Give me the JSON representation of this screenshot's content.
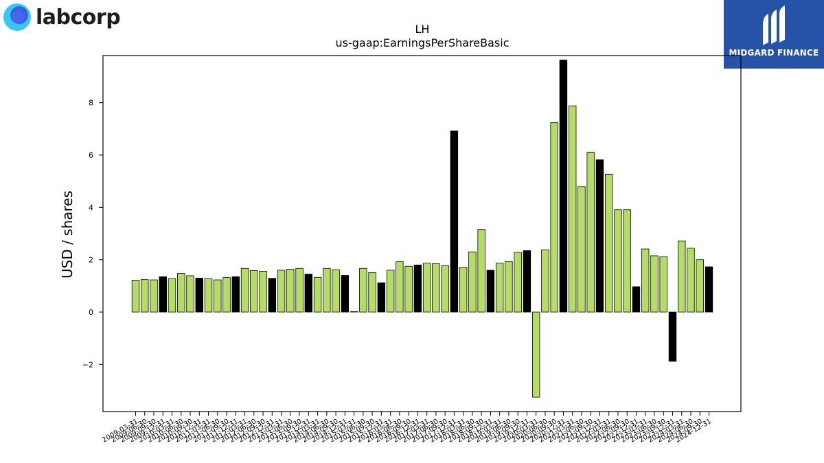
{
  "brand": {
    "name": "labcorp",
    "logo_icon": "labcorp-circle-logo"
  },
  "badge": {
    "name": "MIDGARD FINANCE",
    "icon": "midgard-logo"
  },
  "colors": {
    "bar_normal": "#b5dc67",
    "bar_q4": "#000000",
    "axis": "#000000"
  },
  "chart_data": {
    "type": "bar",
    "title": "LH",
    "subtitle": "us-gaap:EarningsPerShareBasic",
    "ylabel": "USD / shares",
    "xlabel": "",
    "ylim": [
      -3.8,
      9.8
    ],
    "yticks": [
      -2,
      0,
      2,
      4,
      6,
      8
    ],
    "ytick_labels": [
      "−2",
      "0",
      "2",
      "4",
      "6",
      "8"
    ],
    "grid": false,
    "categories": [
      "2009-03-31",
      "2009-06-30",
      "2009-09-30",
      "2009-12-31",
      "2010-03-31",
      "2010-06-30",
      "2010-09-30",
      "2010-12-31",
      "2011-03-31",
      "2011-06-30",
      "2011-09-30",
      "2011-12-31",
      "2012-03-31",
      "2012-06-30",
      "2012-09-30",
      "2012-12-31",
      "2013-03-31",
      "2013-06-30",
      "2013-09-30",
      "2013-12-31",
      "2014-03-31",
      "2014-06-30",
      "2014-09-30",
      "2014-12-31",
      "2015-03-31",
      "2015-06-30",
      "2015-09-30",
      "2015-12-31",
      "2016-03-31",
      "2016-06-30",
      "2016-09-30",
      "2016-12-31",
      "2017-03-31",
      "2017-06-30",
      "2017-09-30",
      "2017-12-31",
      "2018-03-31",
      "2018-06-30",
      "2018-09-30",
      "2018-12-31",
      "2019-03-31",
      "2019-06-30",
      "2019-09-30",
      "2019-12-31",
      "2020-03-31",
      "2020-06-30",
      "2020-09-30",
      "2020-12-31",
      "2021-03-31",
      "2021-06-30",
      "2021-09-30",
      "2021-12-31",
      "2022-03-31",
      "2022-06-30",
      "2022-09-30",
      "2022-12-31",
      "2023-03-31",
      "2023-06-30",
      "2023-09-30",
      "2023-12-31",
      "2024-03-31",
      "2024-06-30",
      "2024-09-30",
      "2024-12-31"
    ],
    "xtick_labels": [
      "2009-03-31",
      "2009-06-30",
      "2009-09-30",
      "2009-12-31",
      "2010-03-31",
      "2010-06-30",
      "2010-09-30",
      "2010-12-31",
      "2011-03-31",
      "2011-06-30",
      "2011-09-30",
      "2011-12-31",
      "2012-03-31",
      "2012-06-30",
      "2012-09-30",
      "2012-12-31",
      "2013-03-31",
      "2013-06-30",
      "2013-09-30",
      "2013-12-31",
      "2014-03-31",
      "2014-06-30",
      "2014-09-30",
      "2014-12-31",
      "2015-03-31",
      "2015-06-30",
      "2015-09-30",
      "2015-12-31",
      "2016-03-31",
      "2016-06-30",
      "2016-09-30",
      "2016-12-31",
      "2017-03-31",
      "2017-06-30",
      "2017-09-30",
      "2017-12-31",
      "2018-03-31",
      "2018-06-30",
      "2018-09-30",
      "2018-12-31",
      "2019-03-31",
      "2019-06-30",
      "2019-09-30",
      "2019-12-31",
      "2020-03-31",
      "2020-06-30",
      "2020-09-30",
      "2020-12-31",
      "2021-03-31",
      "2021-06-30",
      "2021-09-30",
      "2021-12-31",
      "2022-03-31",
      "2022-06-30",
      "2022-09-30",
      "2022-12-31",
      "2023-03-31",
      "2023-06-30",
      "2023-09-30",
      "2023-12-31",
      "2024-03-31",
      "2024-06-30",
      "2024-09-30",
      "2024-12-31"
    ],
    "values": [
      1.22,
      1.24,
      1.23,
      1.35,
      1.28,
      1.48,
      1.39,
      1.3,
      1.28,
      1.23,
      1.32,
      1.35,
      1.67,
      1.59,
      1.56,
      1.29,
      1.6,
      1.64,
      1.67,
      1.45,
      1.33,
      1.67,
      1.62,
      1.4,
      0.02,
      1.67,
      1.51,
      1.12,
      1.6,
      1.93,
      1.75,
      1.8,
      1.87,
      1.85,
      1.77,
      6.92,
      1.71,
      2.3,
      3.15,
      1.6,
      1.87,
      1.93,
      2.28,
      2.35,
      -3.25,
      2.38,
      7.24,
      9.63,
      7.88,
      4.8,
      6.1,
      5.82,
      5.26,
      3.91,
      3.91,
      0.97,
      2.41,
      2.15,
      2.12,
      -1.88,
      2.72,
      2.44,
      2.0,
      1.73
    ]
  }
}
